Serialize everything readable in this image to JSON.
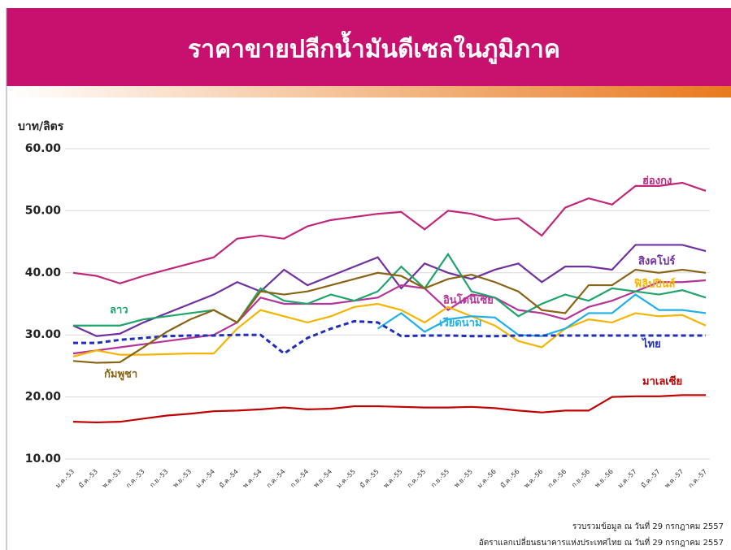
{
  "chart_data": {
    "type": "line",
    "title": "ราคาขายปลีกน้ำมันดีเซลในภูมิภาค",
    "y_label": "บาท/ลิตร",
    "categories": [
      "ม.ค.-53",
      "มี.ค.-53",
      "พ.ค.-53",
      "ก.ค.-53",
      "ก.ย.-53",
      "พ.ย.-53",
      "ม.ค.-54",
      "มี.ค.-54",
      "พ.ค.-54",
      "ก.ค.-54",
      "ก.ย.-54",
      "พ.ย.-54",
      "ม.ค.-55",
      "มี.ค.-55",
      "พ.ค.-55",
      "ก.ค.-55",
      "ก.ย.-55",
      "พ.ย.-55",
      "ม.ค.-56",
      "มี.ค.-56",
      "พ.ค.-56",
      "ก.ค.-56",
      "ก.ย.-56",
      "พ.ย.-56",
      "ม.ค.-57",
      "มี.ค.-57",
      "พ.ค.-57",
      "ก.ค.-57"
    ],
    "ylim": [
      10,
      60
    ],
    "yticks": [
      {
        "value": 10,
        "label": "10.00"
      },
      {
        "value": 20,
        "label": "20.00"
      },
      {
        "value": 30,
        "label": "30.00"
      },
      {
        "value": 40,
        "label": "40.00"
      },
      {
        "value": 50,
        "label": "50.00"
      },
      {
        "value": 60,
        "label": "60.00"
      }
    ],
    "grid": true,
    "series": [
      {
        "name": "ฮ่องกง",
        "color": "#c0267a",
        "values": [
          40,
          39.5,
          38.3,
          39.5,
          40.5,
          41.5,
          42.5,
          45.5,
          46,
          45.5,
          47.5,
          48.5,
          49,
          49.5,
          49.8,
          47,
          50,
          49.5,
          48.5,
          48.8,
          46,
          50.5,
          52,
          51,
          54,
          54,
          54.5,
          53.2
        ]
      },
      {
        "name": "สิงคโปร์",
        "color": "#7030a0",
        "values": [
          31.5,
          29.8,
          30.2,
          32,
          33.5,
          35,
          36.5,
          38.5,
          37,
          40.5,
          38,
          39.5,
          41,
          42.5,
          37.5,
          41.5,
          40,
          39,
          40.5,
          41.5,
          38.5,
          41,
          41,
          40.5,
          44.5,
          44.5,
          44.5,
          43.5
        ]
      },
      {
        "name": "อินโดนีเซีย",
        "color": "#b4349a",
        "values": [
          27,
          27.5,
          28,
          28.5,
          29,
          29.5,
          30,
          32,
          36,
          35,
          35,
          35,
          35.5,
          36,
          38,
          37.5,
          34,
          36.5,
          36,
          34,
          33.5,
          32.5,
          34.5,
          35.5,
          37,
          38.5,
          38.5,
          38.8
        ]
      },
      {
        "name": "ลาว",
        "color": "#1ea56a",
        "values": [
          31.5,
          31.5,
          31.5,
          32.5,
          33,
          33.5,
          34,
          32,
          37.5,
          35.5,
          35,
          36.5,
          35.5,
          37,
          41,
          37.5,
          43,
          37,
          36,
          33,
          35,
          36.5,
          35.5,
          37.5,
          37,
          36.5,
          37.2,
          36
        ]
      },
      {
        "name": "ฟิลิปปินส์",
        "color": "#f4b400",
        "values": [
          26.5,
          27.5,
          26.8,
          26.8,
          26.9,
          27,
          27,
          31,
          34,
          33,
          32,
          33,
          34.5,
          35,
          34,
          32,
          34.5,
          33,
          31.5,
          29,
          28,
          31,
          32.5,
          32,
          33.5,
          33,
          33.2,
          31.5
        ]
      },
      {
        "name": "เวียดนาม",
        "color": "#1fb0e8",
        "values": [
          null,
          null,
          null,
          null,
          null,
          null,
          null,
          null,
          null,
          null,
          null,
          null,
          null,
          31,
          33.5,
          30.5,
          32.5,
          33,
          32.8,
          30,
          29.8,
          31,
          33.5,
          33.5,
          36.5,
          34,
          34,
          33.5
        ]
      },
      {
        "name": "ไทย",
        "color": "#1f2fb8",
        "dashed": true,
        "values": [
          28.7,
          28.7,
          29.2,
          29.5,
          29.8,
          29.9,
          29.9,
          30,
          30,
          27,
          29.5,
          31,
          32.2,
          32,
          29.8,
          29.9,
          29.9,
          29.8,
          29.8,
          29.9,
          29.9,
          29.9,
          29.9,
          29.9,
          29.9,
          29.9,
          29.9,
          29.9
        ]
      },
      {
        "name": "กัมพูชา",
        "color": "#8a6414",
        "values": [
          25.8,
          25.5,
          25.6,
          28,
          30.5,
          32.5,
          34,
          32,
          37,
          36.5,
          37,
          38,
          39,
          40,
          39.5,
          37.5,
          39,
          39.7,
          38.5,
          37,
          34,
          33.5,
          38,
          38,
          40.5,
          40,
          40.5,
          40
        ]
      },
      {
        "name": "มาเลเซีย",
        "color": "#c00000",
        "values": [
          16,
          15.9,
          16,
          16.5,
          17,
          17.3,
          17.7,
          17.8,
          18,
          18.3,
          18,
          18.1,
          18.5,
          18.5,
          18.4,
          18.3,
          18.3,
          18.4,
          18.2,
          17.8,
          17.5,
          17.8,
          17.8,
          20,
          20.1,
          20.1,
          20.3,
          20.3
        ]
      }
    ],
    "notes": [
      "รวบรวมข้อมูล ณ วันที่ 29 กรกฎาคม 2557",
      "อัตราแลกเปลี่ยนธนาคารแห่งประเทศไทย  ณ วันที่ 29 กรกฎาคม 2557"
    ]
  }
}
